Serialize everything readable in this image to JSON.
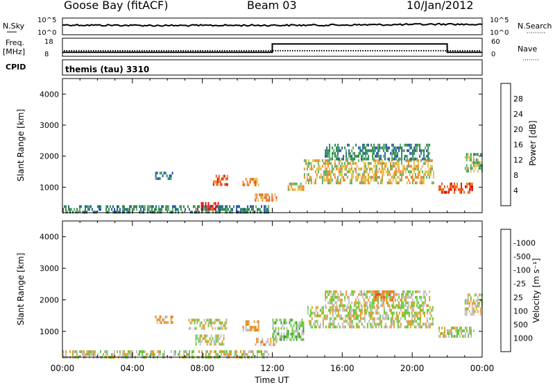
{
  "header": {
    "station": "Goose Bay (fitACF)",
    "beam": "Beam 03",
    "date": "10/Jan/2012"
  },
  "strip_labels": {
    "nsky": "N.Sky",
    "nsky_ticks": [
      "10^5",
      "10^0"
    ],
    "nsearch": "N.Search",
    "nsearch_ticks": [
      "10^5",
      "10^0"
    ],
    "freq": "Freq.",
    "freq_unit": "[MHz]",
    "freq_ticks": [
      "18",
      "8"
    ],
    "nave": "Nave",
    "nave_ticks": [
      "60",
      "0"
    ],
    "cpid": "CPID",
    "cpid_value": "themis (tau) 3310"
  },
  "chart_data": [
    {
      "type": "line",
      "title": "N.Sky / N.Search",
      "x": [
        0,
        2,
        4,
        6,
        8,
        10,
        12,
        14,
        16,
        18,
        20,
        22,
        24
      ],
      "series": [
        {
          "name": "N.Sky",
          "values": [
            1000,
            800,
            700,
            600,
            650,
            700,
            750,
            800,
            900,
            1100,
            1300,
            1800,
            1200
          ]
        }
      ]
    },
    {
      "type": "line",
      "title": "Freq / Nave",
      "x": [
        0,
        12,
        12.0,
        22,
        22.0,
        24
      ],
      "series": [
        {
          "name": "Freq",
          "values": [
            10,
            10,
            15,
            15,
            10,
            10
          ]
        }
      ],
      "ylim": [
        8,
        18
      ]
    },
    {
      "type": "heatmap",
      "xlabel": "",
      "ylabel": "Slant Range [km]",
      "ylim": [
        180,
        4500
      ],
      "y_ticks": [
        "1000",
        "2000",
        "3000",
        "4000"
      ],
      "colorbar": {
        "label": "Power [dB]",
        "ticks": [
          "4",
          "8",
          "12",
          "16",
          "20",
          "24",
          "28"
        ],
        "colors": [
          "#1a2de0",
          "#2b5aa8",
          "#2f8a55",
          "#5fae6a",
          "#e6c24a",
          "#ee8a2a",
          "#e85a1e",
          "#e01010"
        ]
      },
      "regions": [
        {
          "start": 0.0,
          "end": 11.8,
          "r_min": 180,
          "r_max": 420,
          "level": 2
        },
        {
          "start": 7.6,
          "end": 8.9,
          "r_min": 300,
          "r_max": 520,
          "level": 7
        },
        {
          "start": 5.3,
          "end": 6.3,
          "r_min": 1250,
          "r_max": 1500,
          "level": 2
        },
        {
          "start": 8.6,
          "end": 9.4,
          "r_min": 1050,
          "r_max": 1400,
          "level": 6
        },
        {
          "start": 10.3,
          "end": 11.2,
          "r_min": 1050,
          "r_max": 1300,
          "level": 5
        },
        {
          "start": 11.0,
          "end": 12.2,
          "r_min": 600,
          "r_max": 800,
          "level": 5
        },
        {
          "start": 12.8,
          "end": 13.8,
          "r_min": 900,
          "r_max": 1150,
          "level": 4
        },
        {
          "start": 13.8,
          "end": 21.2,
          "r_min": 1150,
          "r_max": 1900,
          "level": 4
        },
        {
          "start": 15.0,
          "end": 21.0,
          "r_min": 1900,
          "r_max": 2400,
          "level": 2
        },
        {
          "start": 21.5,
          "end": 23.5,
          "r_min": 850,
          "r_max": 1150,
          "level": 6
        },
        {
          "start": 23.0,
          "end": 24.0,
          "r_min": 1500,
          "r_max": 2100,
          "level": 3
        }
      ]
    },
    {
      "type": "heatmap",
      "xlabel": "Time UT",
      "ylabel": "Slant Range [km]",
      "ylim": [
        180,
        4500
      ],
      "y_ticks": [
        "1000",
        "2000",
        "3000",
        "4000"
      ],
      "x_ticks": [
        "00:00",
        "04:00",
        "08:00",
        "12:00",
        "16:00",
        "20:00",
        "00:00"
      ],
      "colorbar": {
        "label": "Velocity [m s^-1]",
        "ticks": [
          "1000",
          "500",
          "100",
          "25",
          "-25",
          "-100",
          "-500",
          "-1000"
        ],
        "colors": [
          "#1a2de0",
          "#2b6a8a",
          "#3d9a3d",
          "#66cc33",
          "#c0c0c0",
          "#e6a030",
          "#f07a20",
          "#e84a10",
          "#e01010"
        ]
      },
      "regions": [
        {
          "start": 0.0,
          "end": 11.8,
          "r_min": 180,
          "r_max": 400,
          "level": 4
        },
        {
          "start": 7.6,
          "end": 9.2,
          "r_min": 600,
          "r_max": 900,
          "level": 4
        },
        {
          "start": 5.3,
          "end": 6.3,
          "r_min": 1250,
          "r_max": 1500,
          "level": 5
        },
        {
          "start": 7.2,
          "end": 9.4,
          "r_min": 1100,
          "r_max": 1400,
          "level": 4
        },
        {
          "start": 10.3,
          "end": 11.2,
          "r_min": 1050,
          "r_max": 1350,
          "level": 5
        },
        {
          "start": 11.0,
          "end": 12.2,
          "r_min": 600,
          "r_max": 800,
          "level": 5
        },
        {
          "start": 12.0,
          "end": 13.8,
          "r_min": 700,
          "r_max": 1400,
          "level": 3
        },
        {
          "start": 14.0,
          "end": 21.2,
          "r_min": 1150,
          "r_max": 1800,
          "level": 4
        },
        {
          "start": 15.0,
          "end": 21.0,
          "r_min": 1800,
          "r_max": 2300,
          "level": 4
        },
        {
          "start": 17.8,
          "end": 19.0,
          "r_min": 2000,
          "r_max": 2300,
          "level": 6
        },
        {
          "start": 21.5,
          "end": 23.5,
          "r_min": 850,
          "r_max": 1150,
          "level": 4
        },
        {
          "start": 23.0,
          "end": 24.0,
          "r_min": 1500,
          "r_max": 2200,
          "level": 4
        }
      ]
    }
  ]
}
